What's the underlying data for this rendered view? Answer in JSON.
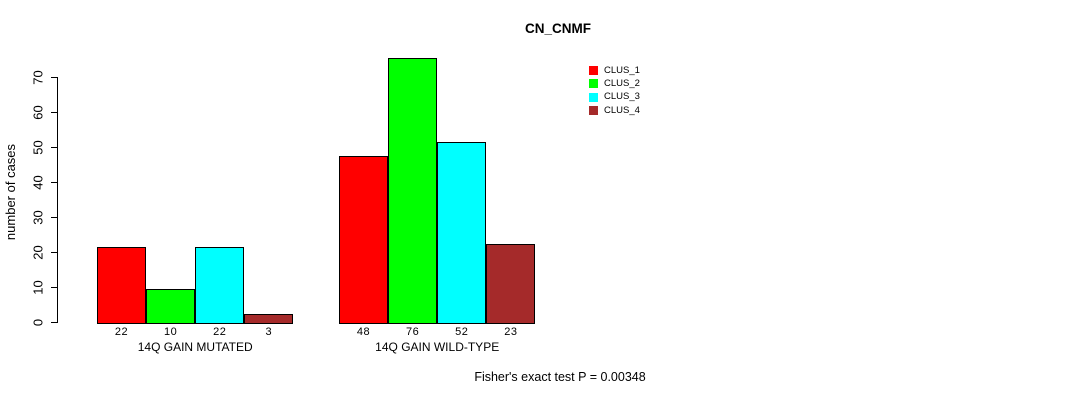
{
  "title": "CN_CNMF",
  "footer": "Fisher's exact test P = 0.00348",
  "chart_data": {
    "type": "bar",
    "title": "CN_CNMF",
    "xlabel": "",
    "ylabel": "number of cases",
    "categories": [
      "14Q GAIN MUTATED",
      "14Q GAIN WILD-TYPE"
    ],
    "series": [
      {
        "name": "CLUS_1",
        "color": "#FF0000",
        "values": [
          22,
          48
        ]
      },
      {
        "name": "CLUS_2",
        "color": "#00FF00",
        "values": [
          10,
          76
        ]
      },
      {
        "name": "CLUS_3",
        "color": "#00FFFF",
        "values": [
          22,
          52
        ]
      },
      {
        "name": "CLUS_4",
        "color": "#A52A2A",
        "values": [
          3,
          23
        ]
      }
    ],
    "bar_value_labels": [
      [
        "22",
        "10",
        "22",
        "3"
      ],
      [
        "48",
        "76",
        "52",
        "23"
      ]
    ],
    "yticks": [
      0,
      10,
      20,
      30,
      40,
      50,
      60,
      70
    ],
    "ylim": [
      0,
      70
    ],
    "grid": false,
    "legend_position": "top-right",
    "legend_entries": [
      "CLUS_1",
      "CLUS_2",
      "CLUS_3",
      "CLUS_4"
    ],
    "annotation": "Fisher's exact test P = 0.00348",
    "axis_color": "#000000",
    "bar_border_color": "#000000"
  }
}
